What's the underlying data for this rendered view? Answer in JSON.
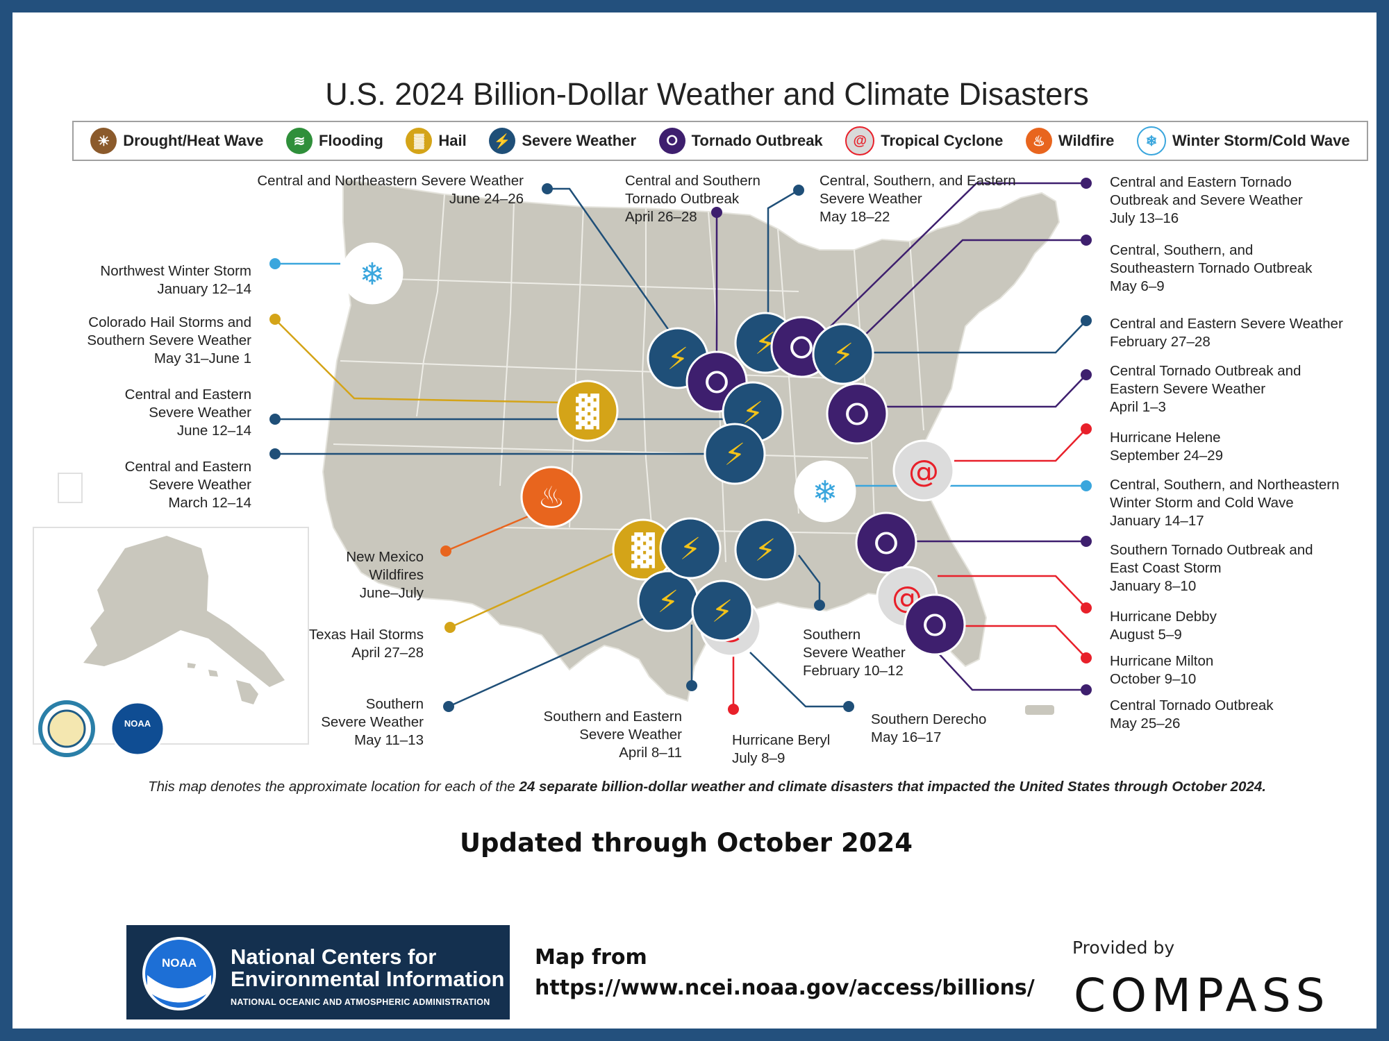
{
  "title": "U.S. 2024 Billion-Dollar Weather and Climate Disasters",
  "legend": [
    {
      "label": "Drought/Heat Wave",
      "icon": "drought-icon",
      "color": "#8b5a2b"
    },
    {
      "label": "Flooding",
      "icon": "flooding-icon",
      "color": "#2f8f3a"
    },
    {
      "label": "Hail",
      "icon": "hail-icon",
      "color": "#d4a418"
    },
    {
      "label": "Severe Weather",
      "icon": "severe-weather-icon",
      "color": "#1f4f78"
    },
    {
      "label": "Tornado Outbreak",
      "icon": "tornado-icon",
      "color": "#3e1f6e"
    },
    {
      "label": "Tropical Cyclone",
      "icon": "tropical-cyclone-icon",
      "color": "#e8202a"
    },
    {
      "label": "Wildfire",
      "icon": "wildfire-icon",
      "color": "#e8651e"
    },
    {
      "label": "Winter Storm/Cold Wave",
      "icon": "winter-storm-icon",
      "color": "#3aa6dd"
    }
  ],
  "events": [
    {
      "lines": [
        "Central and Northeastern Severe Weather",
        "June 24–26"
      ],
      "type": "severe-weather"
    },
    {
      "lines": [
        "Central and Southern",
        "Tornado Outbreak",
        "April 26–28"
      ],
      "type": "tornado"
    },
    {
      "lines": [
        "Central, Southern, and Eastern",
        "Severe Weather",
        "May 18–22"
      ],
      "type": "severe-weather"
    },
    {
      "lines": [
        "Central and Eastern Tornado",
        "Outbreak and Severe Weather",
        "July 13–16"
      ],
      "type": "tornado"
    },
    {
      "lines": [
        "Central, Southern, and",
        "Southeastern Tornado Outbreak",
        "May 6–9"
      ],
      "type": "tornado"
    },
    {
      "lines": [
        "Central and Eastern Severe Weather",
        "February 27–28"
      ],
      "type": "severe-weather"
    },
    {
      "lines": [
        "Central Tornado Outbreak and",
        "Eastern Severe Weather",
        "April 1–3"
      ],
      "type": "tornado"
    },
    {
      "lines": [
        "Hurricane Helene",
        "September 24–29"
      ],
      "type": "tropical-cyclone"
    },
    {
      "lines": [
        "Central, Southern, and Northeastern",
        "Winter Storm and Cold Wave",
        "January 14–17"
      ],
      "type": "winter-storm"
    },
    {
      "lines": [
        "Southern Tornado Outbreak and",
        "East Coast Storm",
        "January 8–10"
      ],
      "type": "tornado"
    },
    {
      "lines": [
        "Hurricane Debby",
        "August 5–9"
      ],
      "type": "tropical-cyclone"
    },
    {
      "lines": [
        "Hurricane Milton",
        "October 9–10"
      ],
      "type": "tropical-cyclone"
    },
    {
      "lines": [
        "Central Tornado Outbreak",
        "May 25–26"
      ],
      "type": "tornado"
    },
    {
      "lines": [
        "Northwest Winter Storm",
        "January 12–14"
      ],
      "type": "winter-storm"
    },
    {
      "lines": [
        "Colorado Hail Storms and",
        "Southern Severe Weather",
        "May 31–June 1"
      ],
      "type": "hail"
    },
    {
      "lines": [
        "Central and Eastern",
        "Severe Weather",
        "June 12–14"
      ],
      "type": "severe-weather"
    },
    {
      "lines": [
        "Central and Eastern",
        "Severe Weather",
        "March 12–14"
      ],
      "type": "severe-weather"
    },
    {
      "lines": [
        "New Mexico",
        "Wildfires",
        "June–July"
      ],
      "type": "wildfire"
    },
    {
      "lines": [
        "Texas Hail Storms",
        "April 27–28"
      ],
      "type": "hail"
    },
    {
      "lines": [
        "Southern",
        "Severe Weather",
        "May 11–13"
      ],
      "type": "severe-weather"
    },
    {
      "lines": [
        "Southern and Eastern",
        "Severe Weather",
        "April 8–11"
      ],
      "type": "severe-weather"
    },
    {
      "lines": [
        "Hurricane Beryl",
        "July 8–9"
      ],
      "type": "tropical-cyclone"
    },
    {
      "lines": [
        "Southern Derecho",
        "May 16–17"
      ],
      "type": "severe-weather"
    },
    {
      "lines": [
        "Southern",
        "Severe Weather",
        "February 10–12"
      ],
      "type": "severe-weather"
    }
  ],
  "caption_prefix": "This map denotes the approximate location for each of the ",
  "caption_bold": "24 separate billion-dollar weather and climate disasters that impacted the United States through October 2024.",
  "updated": "Updated through October 2024",
  "ncei": {
    "logo_text": "NOAA",
    "name_line1": "National Centers for",
    "name_line2": "Environmental Information",
    "subtitle": "NATIONAL OCEANIC AND ATMOSPHERIC ADMINISTRATION"
  },
  "map_from": {
    "line1": "Map from",
    "line2": "https://www.ncei.noaa.gov/access/billions/"
  },
  "provided_by": "Provided by",
  "brand": "COMPASS",
  "seal_noaa_text": "NOAA"
}
